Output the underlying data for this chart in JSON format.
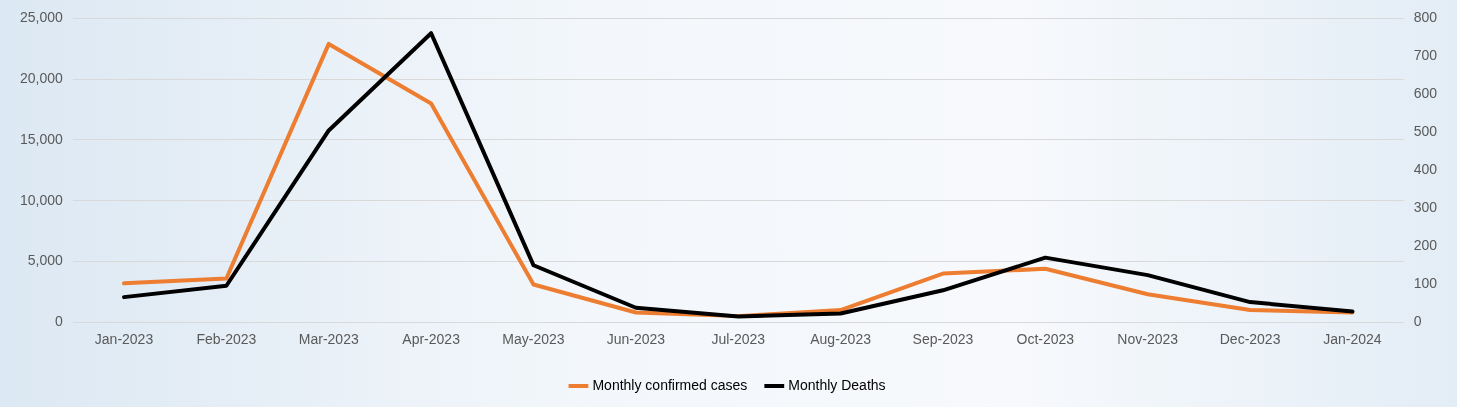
{
  "chart_data": {
    "type": "line",
    "categories": [
      "Jan-2023",
      "Feb-2023",
      "Mar-2023",
      "Apr-2023",
      "May-2023",
      "Jun-2023",
      "Jul-2023",
      "Aug-2023",
      "Sep-2023",
      "Oct-2023",
      "Nov-2023",
      "Dec-2023",
      "Jan-2024"
    ],
    "series": [
      {
        "name": "Monthly confirmed cases",
        "color": "#ed7d31",
        "values": [
          3200,
          3600,
          22900,
          18000,
          3100,
          800,
          500,
          1000,
          4000,
          4400,
          2300,
          1000,
          800
        ]
      },
      {
        "name": "Monthly Deaths",
        "color": "#000000",
        "axis": "y2",
        "values": [
          66,
          96,
          505,
          761,
          150,
          38,
          15,
          23,
          84,
          170,
          124,
          53,
          28
        ]
      }
    ],
    "ylim": [
      0,
      25000
    ],
    "yticks": [
      {
        "value": 0,
        "label": "0"
      },
      {
        "value": 5000,
        "label": "5,000"
      },
      {
        "value": 10000,
        "label": "10,000"
      },
      {
        "value": 15000,
        "label": "15,000"
      },
      {
        "value": 20000,
        "label": "20,000"
      },
      {
        "value": 25000,
        "label": "25,000"
      }
    ],
    "y2lim": [
      0,
      800
    ],
    "y2ticks": [
      0,
      100,
      200,
      300,
      400,
      500,
      600,
      700,
      800
    ],
    "grid": "y",
    "legend": "bottom",
    "marker": "none",
    "line_style": "solid"
  }
}
